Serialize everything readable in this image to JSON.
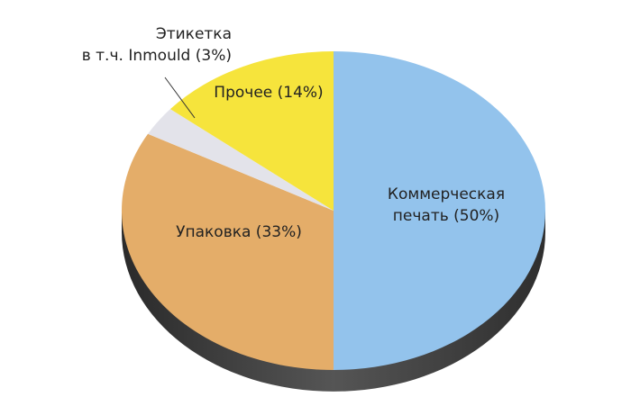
{
  "chart_data": {
    "type": "pie",
    "categories": [
      "Коммерческая\nпечать (50%)",
      "Упаковка (33%)",
      "Этикетка\nв т.ч. Inmould (3%)",
      "Прочее (14%)"
    ],
    "values": [
      50,
      33,
      3,
      14
    ],
    "colors": [
      "#93c3ec",
      "#e4ad69",
      "#e3e3ea",
      "#f6e43c"
    ],
    "three_d": true
  }
}
